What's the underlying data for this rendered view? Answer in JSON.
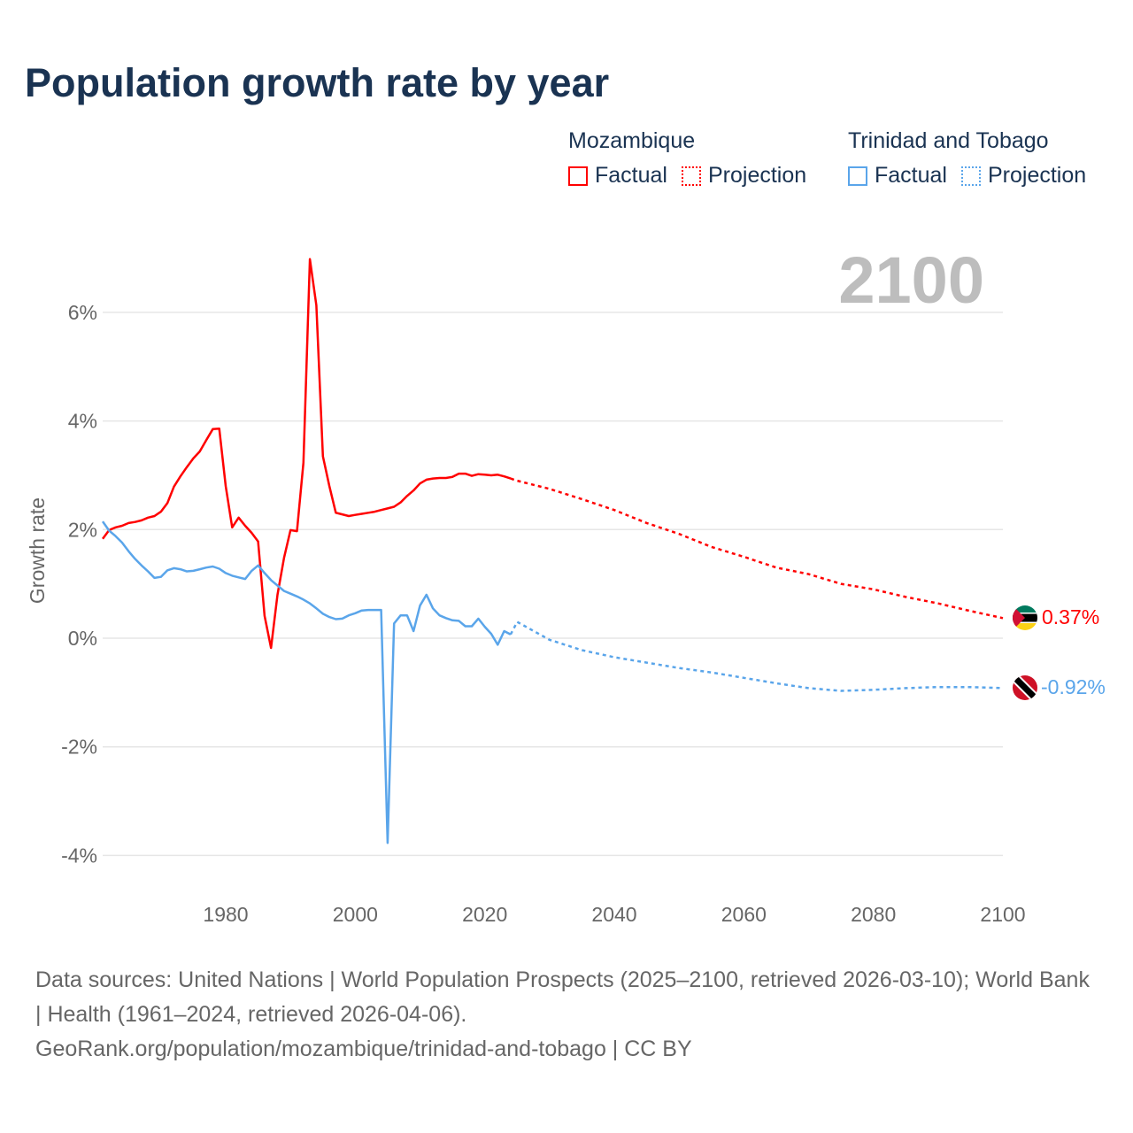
{
  "title": "Population growth rate by year",
  "legend": {
    "groups": [
      {
        "name": "Mozambique",
        "color": "#ff0000",
        "factual_label": "Factual",
        "projection_label": "Projection"
      },
      {
        "name": "Trinidad and Tobago",
        "color": "#5aa5ea",
        "factual_label": "Factual",
        "projection_label": "Projection"
      }
    ]
  },
  "year_label": "2100",
  "footer": {
    "sources": "Data sources: United Nations | World Population Prospects (2025–2100, retrieved 2026-03-10); World Bank | Health (1961–2024, retrieved 2026-04-06).",
    "link": "GeoRank.org/population/mozambique/trinidad-and-tobago | CC BY"
  },
  "chart_data": {
    "type": "line",
    "title": "Population growth rate by year",
    "xlabel": "",
    "ylabel": "Growth rate",
    "xlim": [
      1961,
      2100
    ],
    "ylim": [
      -4.6,
      7.2
    ],
    "xticks": [
      1980,
      2000,
      2020,
      2040,
      2060,
      2080,
      2100
    ],
    "yticks": [
      -4,
      -2,
      0,
      2,
      4,
      6
    ],
    "ytick_labels": [
      "-4%",
      "-2%",
      "0%",
      "2%",
      "4%",
      "6%"
    ],
    "grid": true,
    "legend_position": "top-right",
    "series": [
      {
        "name": "Mozambique",
        "color": "#ff0000",
        "end_label": "0.37%",
        "factual": {
          "x": [
            1961,
            1962,
            1963,
            1964,
            1965,
            1966,
            1967,
            1968,
            1969,
            1970,
            1971,
            1972,
            1973,
            1974,
            1975,
            1976,
            1977,
            1978,
            1979,
            1980,
            1981,
            1982,
            1983,
            1984,
            1985,
            1986,
            1987,
            1988,
            1989,
            1990,
            1991,
            1992,
            1993,
            1994,
            1995,
            1996,
            1997,
            1998,
            1999,
            2000,
            2001,
            2002,
            2003,
            2004,
            2005,
            2006,
            2007,
            2008,
            2009,
            2010,
            2011,
            2012,
            2013,
            2014,
            2015,
            2016,
            2017,
            2018,
            2019,
            2020,
            2021,
            2022,
            2023,
            2024
          ],
          "y": [
            1.83,
            1.99,
            2.04,
            2.07,
            2.12,
            2.14,
            2.17,
            2.22,
            2.25,
            2.33,
            2.49,
            2.79,
            2.98,
            3.15,
            3.31,
            3.44,
            3.65,
            3.85,
            3.86,
            2.8,
            2.04,
            2.22,
            2.07,
            1.94,
            1.78,
            0.41,
            -0.18,
            0.8,
            1.48,
            1.99,
            1.97,
            3.23,
            6.98,
            6.13,
            3.35,
            2.8,
            2.31,
            2.28,
            2.25,
            2.27,
            2.29,
            2.31,
            2.33,
            2.36,
            2.39,
            2.42,
            2.5,
            2.62,
            2.72,
            2.85,
            2.92,
            2.94,
            2.95,
            2.95,
            2.97,
            3.03,
            3.03,
            2.99,
            3.02,
            3.01,
            3.0,
            3.01,
            2.98,
            2.94
          ]
        },
        "projection": {
          "x": [
            2024,
            2025,
            2030,
            2035,
            2040,
            2045,
            2050,
            2055,
            2060,
            2065,
            2070,
            2075,
            2080,
            2085,
            2090,
            2095,
            2100
          ],
          "y": [
            2.94,
            2.9,
            2.75,
            2.56,
            2.36,
            2.12,
            1.92,
            1.68,
            1.5,
            1.3,
            1.18,
            1.0,
            0.9,
            0.76,
            0.64,
            0.5,
            0.37
          ]
        }
      },
      {
        "name": "Trinidad and Tobago",
        "color": "#5aa5ea",
        "end_label": "-0.92%",
        "factual": {
          "x": [
            1961,
            1962,
            1963,
            1964,
            1965,
            1966,
            1967,
            1968,
            1969,
            1970,
            1971,
            1972,
            1973,
            1974,
            1975,
            1976,
            1977,
            1978,
            1979,
            1980,
            1981,
            1982,
            1983,
            1984,
            1985,
            1986,
            1987,
            1988,
            1989,
            1990,
            1991,
            1992,
            1993,
            1994,
            1995,
            1996,
            1997,
            1998,
            1999,
            2000,
            2001,
            2002,
            2003,
            2004,
            2005,
            2006,
            2007,
            2008,
            2009,
            2010,
            2011,
            2012,
            2013,
            2014,
            2015,
            2016,
            2017,
            2018,
            2019,
            2020,
            2021,
            2022,
            2023,
            2024
          ],
          "y": [
            2.15,
            1.98,
            1.88,
            1.76,
            1.6,
            1.46,
            1.34,
            1.23,
            1.11,
            1.13,
            1.25,
            1.29,
            1.27,
            1.23,
            1.24,
            1.27,
            1.3,
            1.32,
            1.28,
            1.2,
            1.15,
            1.12,
            1.09,
            1.24,
            1.34,
            1.2,
            1.07,
            0.97,
            0.87,
            0.82,
            0.77,
            0.71,
            0.64,
            0.55,
            0.45,
            0.39,
            0.35,
            0.36,
            0.42,
            0.46,
            0.51,
            0.52,
            0.52,
            0.52,
            -3.77,
            0.27,
            0.42,
            0.42,
            0.13,
            0.6,
            0.8,
            0.55,
            0.42,
            0.37,
            0.33,
            0.32,
            0.22,
            0.22,
            0.36,
            0.21,
            0.08,
            -0.12,
            0.13,
            0.07
          ]
        },
        "projection": {
          "x": [
            2024,
            2025,
            2030,
            2035,
            2040,
            2045,
            2050,
            2055,
            2060,
            2065,
            2070,
            2075,
            2080,
            2085,
            2090,
            2095,
            2100
          ],
          "y": [
            0.07,
            0.3,
            -0.03,
            -0.22,
            -0.35,
            -0.45,
            -0.55,
            -0.63,
            -0.73,
            -0.83,
            -0.92,
            -0.97,
            -0.95,
            -0.92,
            -0.9,
            -0.9,
            -0.92
          ]
        }
      }
    ]
  }
}
